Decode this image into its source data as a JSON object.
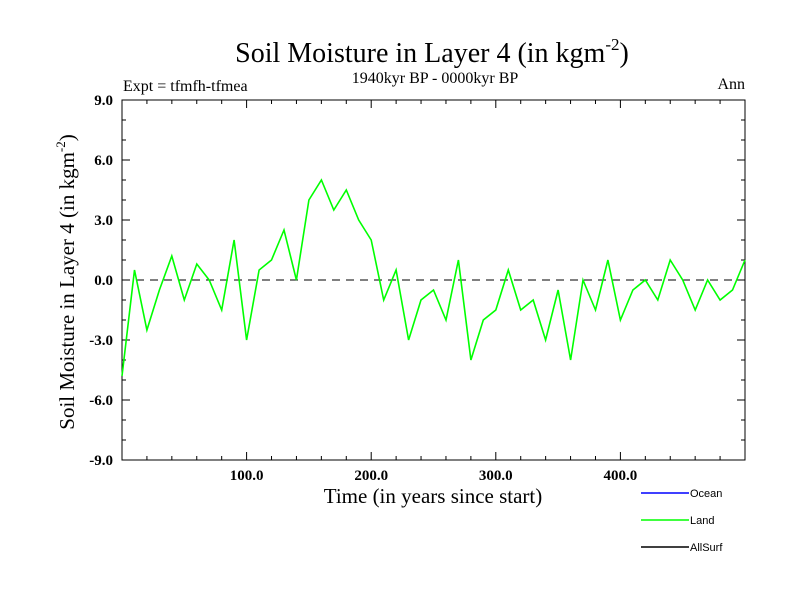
{
  "chart_data": {
    "type": "line",
    "title": "Soil Moisture in Layer 4 (in kgm",
    "title_sup": "-2",
    "title_close": ")",
    "subtitle": "1940kyr BP - 0000kyr BP",
    "left_label": "Expt = tfmfh-tfmea",
    "right_label": "Ann",
    "xlabel": "Time (in years since start)",
    "ylabel": "Soil Moisture in Layer 4 (in kgm",
    "ylabel_sup": "-2",
    "ylabel_close": ")",
    "xlim": [
      0,
      500
    ],
    "ylim": [
      -9,
      9
    ],
    "xticks": [
      100,
      200,
      300,
      400
    ],
    "xtick_labels": [
      "100.0",
      "200.0",
      "300.0",
      "400.0"
    ],
    "yticks": [
      9,
      6,
      3,
      0,
      -3,
      -6,
      -9
    ],
    "ytick_labels": [
      "9.0",
      "6.0",
      "3.0",
      "0.0",
      "-3.0",
      "-6.0",
      "-9.0"
    ],
    "zero_line": true,
    "legend": [
      {
        "name": "Ocean",
        "color": "#0000ff"
      },
      {
        "name": "Land",
        "color": "#00ff00"
      },
      {
        "name": "AllSurf",
        "color": "#000000"
      }
    ],
    "series": [
      {
        "name": "Land",
        "color": "#00ff00",
        "x": [
          0,
          10,
          20,
          30,
          40,
          50,
          60,
          70,
          80,
          90,
          100,
          110,
          120,
          130,
          140,
          150,
          160,
          170,
          180,
          190,
          200,
          210,
          220,
          230,
          240,
          250,
          260,
          270,
          280,
          290,
          300,
          310,
          320,
          330,
          340,
          350,
          360,
          370,
          380,
          390,
          400,
          410,
          420,
          430,
          440,
          450,
          460,
          470,
          480,
          490,
          500
        ],
        "values": [
          -4.8,
          0.5,
          -2.5,
          -0.5,
          1.2,
          -1.0,
          0.8,
          0.0,
          -1.5,
          2.0,
          -3.0,
          0.5,
          1.0,
          2.5,
          0.0,
          4.0,
          5.0,
          3.5,
          4.5,
          3.0,
          2.0,
          -1.0,
          0.5,
          -3.0,
          -1.0,
          -0.5,
          -2.0,
          1.0,
          -4.0,
          -2.0,
          -1.5,
          0.5,
          -1.5,
          -1.0,
          -3.0,
          -0.5,
          -4.0,
          0.0,
          -1.5,
          1.0,
          -2.0,
          -0.5,
          0.0,
          -1.0,
          1.0,
          0.0,
          -1.5,
          0.0,
          -1.0,
          -0.5,
          1.0
        ]
      }
    ]
  }
}
